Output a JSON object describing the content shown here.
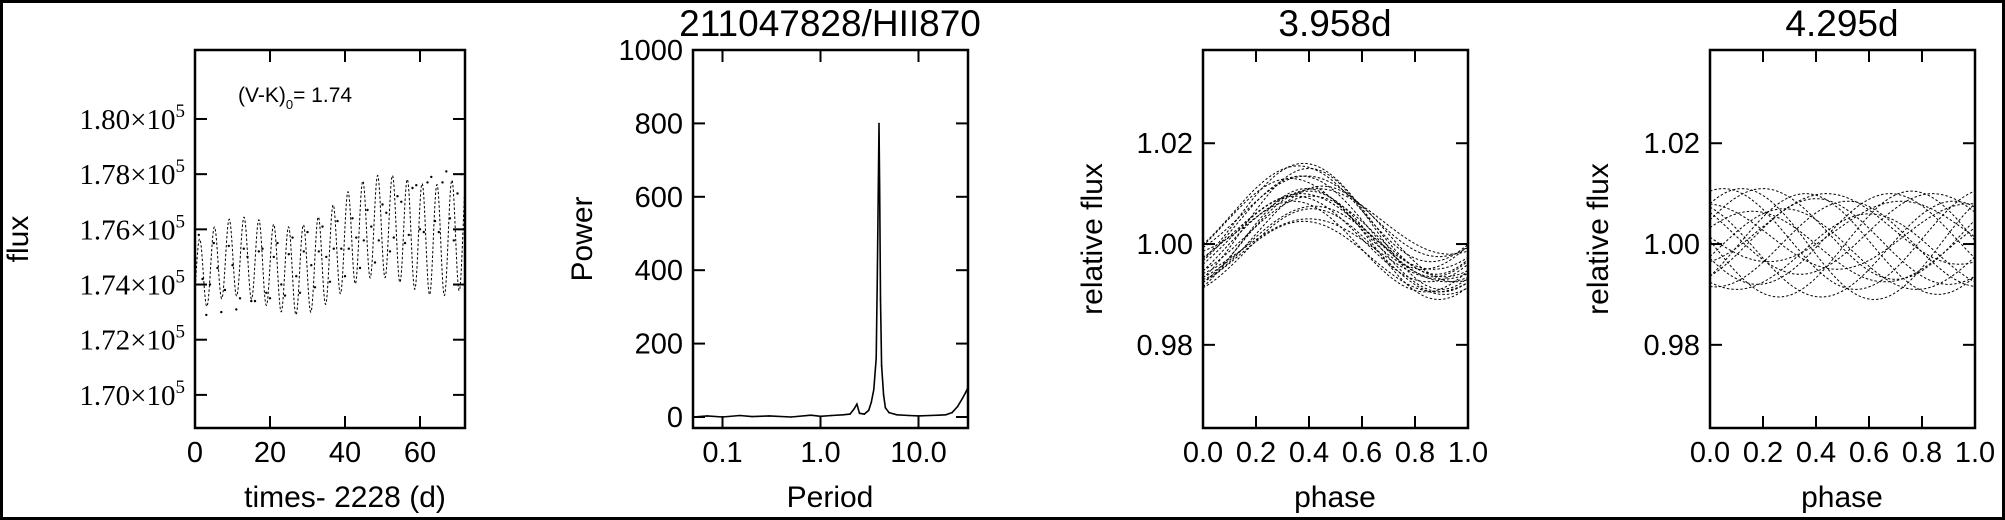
{
  "figure": {
    "border": true
  },
  "chart_data": [
    {
      "type": "scatter",
      "title": "",
      "xlabel": "times- 2228 (d)",
      "ylabel": "flux",
      "annotation": {
        "text": "(V-K)",
        "sub": "0",
        "value": "= 1.74"
      },
      "xlim": [
        0,
        72
      ],
      "ylim": [
        168800,
        182500
      ],
      "x_ticks": [
        0,
        20,
        40,
        60
      ],
      "x_tick_labels": [
        "0",
        "20",
        "40",
        "60"
      ],
      "y_ticks": [
        170000,
        172000,
        174000,
        176000,
        178000,
        180000
      ],
      "y_tick_mantissa": [
        "1.70",
        "1.72",
        "1.74",
        "1.76",
        "1.78",
        "1.80"
      ],
      "y_tick_base": "×10",
      "y_tick_exp": "5",
      "model": {
        "period_d": 3.958,
        "start_mean": 174200,
        "end_mean": 176300,
        "start_amp": 1300,
        "end_amp": 2100
      },
      "points": [
        [
          0,
          174900
        ],
        [
          1,
          175800
        ],
        [
          2,
          174200
        ],
        [
          3,
          172900
        ],
        [
          4,
          174000
        ],
        [
          5,
          175500
        ],
        [
          6,
          174600
        ],
        [
          7,
          173000
        ],
        [
          8,
          173800
        ],
        [
          9,
          175400
        ],
        [
          10,
          174700
        ],
        [
          11,
          173100
        ],
        [
          12,
          173500
        ],
        [
          13,
          175300
        ],
        [
          14,
          175000
        ],
        [
          15,
          173400
        ],
        [
          16,
          173400
        ],
        [
          17,
          175200
        ],
        [
          18,
          175300
        ],
        [
          19,
          173700
        ],
        [
          20,
          173500
        ],
        [
          21,
          175000
        ],
        [
          22,
          175500
        ],
        [
          23,
          174000
        ],
        [
          24,
          173600
        ],
        [
          25,
          175100
        ],
        [
          26,
          175700
        ],
        [
          27,
          174300
        ],
        [
          28,
          173700
        ],
        [
          29,
          175200
        ],
        [
          30,
          175900
        ],
        [
          31,
          174700
        ],
        [
          32,
          173900
        ],
        [
          33,
          175200
        ],
        [
          34,
          176100
        ],
        [
          35,
          175000
        ],
        [
          36,
          174100
        ],
        [
          37,
          175300
        ],
        [
          38,
          176300
        ],
        [
          39,
          175300
        ],
        [
          40,
          174300
        ],
        [
          41,
          175300
        ],
        [
          42,
          176400
        ],
        [
          43,
          175700
        ],
        [
          44,
          174600
        ],
        [
          45,
          175600
        ],
        [
          46,
          176700
        ],
        [
          47,
          176100
        ],
        [
          48,
          174800
        ],
        [
          49,
          175600
        ],
        [
          50,
          176900
        ],
        [
          51,
          176600
        ],
        [
          52,
          175200
        ],
        [
          53,
          175700
        ],
        [
          54,
          177200
        ],
        [
          55,
          177000
        ],
        [
          56,
          175500
        ],
        [
          57,
          175800
        ],
        [
          58,
          177500
        ],
        [
          59,
          177600
        ],
        [
          60,
          176000
        ],
        [
          61,
          175900
        ],
        [
          62,
          177700
        ],
        [
          63,
          177900
        ],
        [
          64,
          176300
        ],
        [
          65,
          175900
        ],
        [
          66,
          177700
        ],
        [
          67,
          178100
        ],
        [
          68,
          176400
        ],
        [
          69,
          175600
        ],
        [
          70,
          177300
        ],
        [
          71,
          178000
        ]
      ]
    },
    {
      "type": "line",
      "title": "211047828/HII870",
      "xlabel": "Period",
      "ylabel": "Power",
      "xscale": "log",
      "xlim": [
        0.05,
        32
      ],
      "ylim": [
        -30,
        1000
      ],
      "x_ticks": [
        0.1,
        1.0,
        10.0
      ],
      "x_tick_labels": [
        "0.1",
        "1.0",
        "10.0"
      ],
      "y_ticks": [
        0,
        200,
        400,
        600,
        800,
        1000
      ],
      "y_tick_labels": [
        "0",
        "200",
        "400",
        "600",
        "800",
        "1000"
      ],
      "x": [
        0.05,
        0.07,
        0.1,
        0.15,
        0.2,
        0.3,
        0.5,
        0.8,
        1.0,
        1.3,
        1.7,
        2.0,
        2.2,
        2.35,
        2.5,
        2.8,
        3.1,
        3.3,
        3.5,
        3.7,
        3.8,
        3.9,
        3.958,
        4.02,
        4.1,
        4.2,
        4.4,
        4.6,
        5.0,
        6.0,
        8.0,
        10.0,
        13.0,
        16.0,
        19.0,
        22.0,
        25.0,
        28.0,
        30.0,
        32.0
      ],
      "values": [
        0,
        3,
        0,
        4,
        1,
        3,
        0,
        5,
        2,
        4,
        6,
        8,
        22,
        35,
        10,
        8,
        18,
        40,
        75,
        160,
        380,
        650,
        800,
        610,
        320,
        140,
        60,
        25,
        12,
        6,
        4,
        3,
        4,
        5,
        6,
        12,
        28,
        50,
        65,
        80
      ]
    },
    {
      "type": "scatter",
      "title": "3.958d",
      "xlabel": "phase",
      "ylabel": "relative flux",
      "xlim": [
        0,
        1
      ],
      "ylim": [
        0.9635,
        1.0385
      ],
      "x_ticks": [
        0,
        0.2,
        0.4,
        0.6,
        0.8,
        1.0
      ],
      "x_tick_labels": [
        "0.0",
        "0.2",
        "0.4",
        "0.6",
        "0.8",
        "1.0"
      ],
      "y_ticks": [
        0.98,
        1.0,
        1.02
      ],
      "y_tick_labels": [
        "0.98",
        "1.00",
        "1.02"
      ],
      "cycles": [
        {
          "mean": 1.0035,
          "amp": 0.01,
          "peak_phase": 0.37
        },
        {
          "mean": 1.003,
          "amp": 0.012,
          "peak_phase": 0.4
        },
        {
          "mean": 1.001,
          "amp": 0.0085,
          "peak_phase": 0.35
        },
        {
          "mean": 1.0,
          "amp": 0.0075,
          "peak_phase": 0.42
        },
        {
          "mean": 1.005,
          "amp": 0.011,
          "peak_phase": 0.38
        },
        {
          "mean": 0.999,
          "amp": 0.006,
          "peak_phase": 0.4
        },
        {
          "mean": 1.004,
          "amp": 0.009,
          "peak_phase": 0.33
        },
        {
          "mean": 1.002,
          "amp": 0.0095,
          "peak_phase": 0.45
        },
        {
          "mean": 0.9975,
          "amp": 0.007,
          "peak_phase": 0.38
        },
        {
          "mean": 1.006,
          "amp": 0.0095,
          "peak_phase": 0.36
        },
        {
          "mean": 1.0015,
          "amp": 0.008,
          "peak_phase": 0.41
        },
        {
          "mean": 1.0,
          "amp": 0.011,
          "peak_phase": 0.39
        },
        {
          "mean": 1.0045,
          "amp": 0.0065,
          "peak_phase": 0.43
        },
        {
          "mean": 0.9995,
          "amp": 0.009,
          "peak_phase": 0.34
        },
        {
          "mean": 1.0025,
          "amp": 0.0075,
          "peak_phase": 0.37
        },
        {
          "mean": 1.0005,
          "amp": 0.01,
          "peak_phase": 0.4
        },
        {
          "mean": 1.0055,
          "amp": 0.008,
          "peak_phase": 0.39
        },
        {
          "mean": 0.9985,
          "amp": 0.0085,
          "peak_phase": 0.41
        }
      ]
    },
    {
      "type": "scatter",
      "title": "4.295d",
      "xlabel": "phase",
      "ylabel": "relative flux",
      "xlim": [
        0,
        1
      ],
      "ylim": [
        0.9635,
        1.0385
      ],
      "x_ticks": [
        0,
        0.2,
        0.4,
        0.6,
        0.8,
        1.0
      ],
      "x_tick_labels": [
        "0.0",
        "0.2",
        "0.4",
        "0.6",
        "0.8",
        "1.0"
      ],
      "y_ticks": [
        0.98,
        1.0,
        1.02
      ],
      "y_tick_labels": [
        "0.98",
        "1.00",
        "1.02"
      ],
      "cycles": [
        {
          "mean": 1.001,
          "amp": 0.01,
          "peak_phase": 0.05
        },
        {
          "mean": 1.0,
          "amp": 0.011,
          "peak_phase": 0.12
        },
        {
          "mean": 1.002,
          "amp": 0.009,
          "peak_phase": 0.2
        },
        {
          "mean": 0.999,
          "amp": 0.008,
          "peak_phase": 0.28
        },
        {
          "mean": 1.0,
          "amp": 0.01,
          "peak_phase": 0.36
        },
        {
          "mean": 1.003,
          "amp": 0.007,
          "peak_phase": 0.44
        },
        {
          "mean": 1.0,
          "amp": 0.0085,
          "peak_phase": 0.52
        },
        {
          "mean": 0.9985,
          "amp": 0.0075,
          "peak_phase": 0.6
        },
        {
          "mean": 1.001,
          "amp": 0.009,
          "peak_phase": 0.68
        },
        {
          "mean": 1.0,
          "amp": 0.0105,
          "peak_phase": 0.76
        },
        {
          "mean": 1.002,
          "amp": 0.008,
          "peak_phase": 0.84
        },
        {
          "mean": 0.999,
          "amp": 0.0095,
          "peak_phase": 0.92
        },
        {
          "mean": 1.0015,
          "amp": 0.0065,
          "peak_phase": 0.98
        },
        {
          "mean": 1.0005,
          "amp": 0.0085,
          "peak_phase": 0.4
        },
        {
          "mean": 0.9995,
          "amp": 0.007,
          "peak_phase": 0.16
        },
        {
          "mean": 1.0025,
          "amp": 0.006,
          "peak_phase": 0.72
        }
      ]
    }
  ]
}
